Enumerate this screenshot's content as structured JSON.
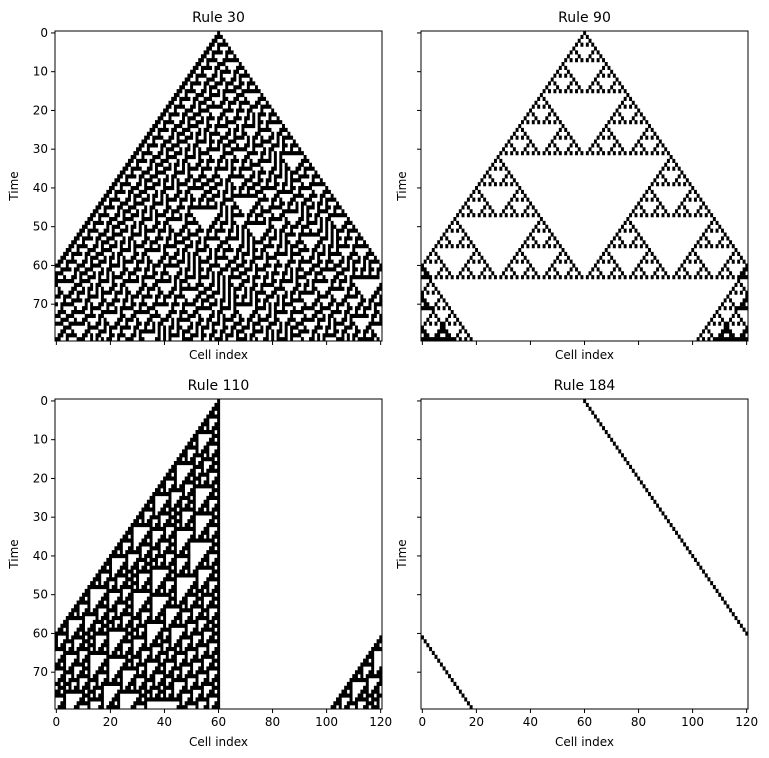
{
  "figure": {
    "background": "#ffffff",
    "cell_on_color": "#000000",
    "cell_off_color": "#ffffff"
  },
  "chart_data": [
    {
      "type": "heatmap",
      "title": "Rule 30",
      "rule": 30,
      "xlabel": "Cell index",
      "ylabel": "Time",
      "cells": 121,
      "steps": 80,
      "initial_live_cell": 60,
      "xlim": [
        -0.5,
        120.5
      ],
      "ylim": [
        79.5,
        -0.5
      ],
      "xticks": [
        0,
        20,
        40,
        60,
        80,
        100,
        120
      ],
      "yticks": [
        0,
        10,
        20,
        30,
        40,
        50,
        60,
        70
      ],
      "xtick_labels_visible": false,
      "ytick_labels_visible": true,
      "boundary": "periodic"
    },
    {
      "type": "heatmap",
      "title": "Rule 90",
      "rule": 90,
      "xlabel": "Cell index",
      "ylabel": "Time",
      "cells": 121,
      "steps": 80,
      "initial_live_cell": 60,
      "xlim": [
        -0.5,
        120.5
      ],
      "ylim": [
        79.5,
        -0.5
      ],
      "xticks": [
        0,
        20,
        40,
        60,
        80,
        100,
        120
      ],
      "yticks": [
        0,
        10,
        20,
        30,
        40,
        50,
        60,
        70
      ],
      "xtick_labels_visible": false,
      "ytick_labels_visible": false,
      "boundary": "periodic"
    },
    {
      "type": "heatmap",
      "title": "Rule 110",
      "rule": 110,
      "xlabel": "Cell index",
      "ylabel": "Time",
      "cells": 121,
      "steps": 80,
      "initial_live_cell": 60,
      "xlim": [
        -0.5,
        120.5
      ],
      "ylim": [
        79.5,
        -0.5
      ],
      "xticks": [
        0,
        20,
        40,
        60,
        80,
        100,
        120
      ],
      "yticks": [
        0,
        10,
        20,
        30,
        40,
        50,
        60,
        70
      ],
      "xtick_labels_visible": true,
      "ytick_labels_visible": true,
      "boundary": "periodic"
    },
    {
      "type": "heatmap",
      "title": "Rule 184",
      "rule": 184,
      "xlabel": "Cell index",
      "ylabel": "Time",
      "cells": 121,
      "steps": 80,
      "initial_live_cell": 60,
      "xlim": [
        -0.5,
        120.5
      ],
      "ylim": [
        79.5,
        -0.5
      ],
      "xticks": [
        0,
        20,
        40,
        60,
        80,
        100,
        120
      ],
      "yticks": [
        0,
        10,
        20,
        30,
        40,
        50,
        60,
        70
      ],
      "xtick_labels_visible": true,
      "ytick_labels_visible": false,
      "boundary": "periodic"
    }
  ]
}
